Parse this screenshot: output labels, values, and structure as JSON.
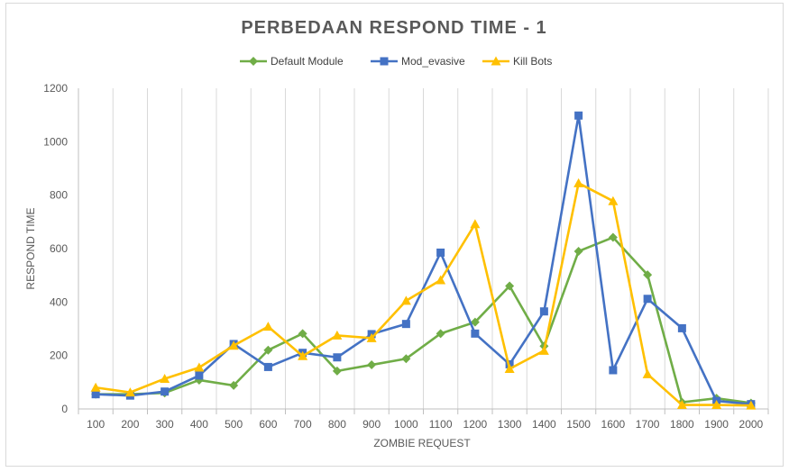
{
  "chart_data": {
    "type": "line",
    "title": "PERBEDAAN RESPOND TIME - 1",
    "xlabel": "ZOMBIE REQUEST",
    "ylabel": "RESPOND TIME",
    "categories": [
      "100",
      "200",
      "300",
      "400",
      "500",
      "600",
      "700",
      "800",
      "900",
      "1000",
      "1100",
      "1200",
      "1300",
      "1400",
      "1500",
      "1600",
      "1700",
      "1800",
      "1900",
      "2000"
    ],
    "ylim": [
      0,
      1200
    ],
    "yticks": [
      0,
      200,
      400,
      600,
      800,
      1000,
      1200
    ],
    "grid": "vertical",
    "legend_position": "top",
    "series": [
      {
        "name": "Default Module",
        "color": "#70AD47",
        "marker": "diamond",
        "values": [
          55,
          55,
          60,
          108,
          88,
          220,
          282,
          142,
          165,
          188,
          282,
          325,
          460,
          235,
          590,
          642,
          502,
          25,
          40,
          22
        ]
      },
      {
        "name": "Mod_evasive",
        "color": "#4472C4",
        "marker": "square",
        "values": [
          55,
          50,
          65,
          125,
          243,
          157,
          210,
          193,
          280,
          318,
          585,
          282,
          167,
          365,
          1098,
          145,
          412,
          302,
          30,
          18
        ]
      },
      {
        "name": "Kill Bots",
        "color": "#FFC000",
        "marker": "triangle",
        "values": [
          80,
          62,
          113,
          155,
          237,
          308,
          198,
          275,
          265,
          405,
          482,
          692,
          150,
          218,
          845,
          778,
          130,
          15,
          15,
          13
        ]
      }
    ]
  }
}
